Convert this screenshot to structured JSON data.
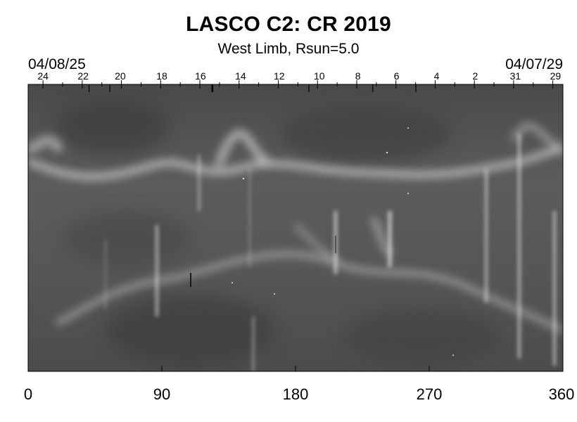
{
  "header": {
    "title": "LASCO C2: CR 2019",
    "subtitle": "West Limb, Rsun=5.0",
    "date_left": "04/08/25",
    "date_right": "04/07/29"
  },
  "top_axis": {
    "day_labels": [
      {
        "label": "24",
        "deg": 10
      },
      {
        "label": "22",
        "deg": 37
      },
      {
        "label": "20",
        "deg": 62
      },
      {
        "label": "18",
        "deg": 90
      },
      {
        "label": "16",
        "deg": 116
      },
      {
        "label": "14",
        "deg": 143
      },
      {
        "label": "12",
        "deg": 169
      },
      {
        "label": "10",
        "deg": 196
      },
      {
        "label": "8",
        "deg": 222
      },
      {
        "label": "6",
        "deg": 248
      },
      {
        "label": "4",
        "deg": 275
      },
      {
        "label": "2",
        "deg": 301
      },
      {
        "label": "31",
        "deg": 328
      },
      {
        "label": "29",
        "deg": 355
      }
    ]
  },
  "bottom_axis": {
    "ticks": [
      {
        "label": "0",
        "deg": 0
      },
      {
        "label": "90",
        "deg": 90
      },
      {
        "label": "180",
        "deg": 180
      },
      {
        "label": "270",
        "deg": 270
      },
      {
        "label": "360",
        "deg": 360
      }
    ],
    "range": [
      0,
      360
    ]
  },
  "colors": {
    "background": "#ffffff",
    "plot_base": "#545454",
    "streamer_bright": "#d8d8d8",
    "streamer_dark": "#3a3a3a"
  }
}
